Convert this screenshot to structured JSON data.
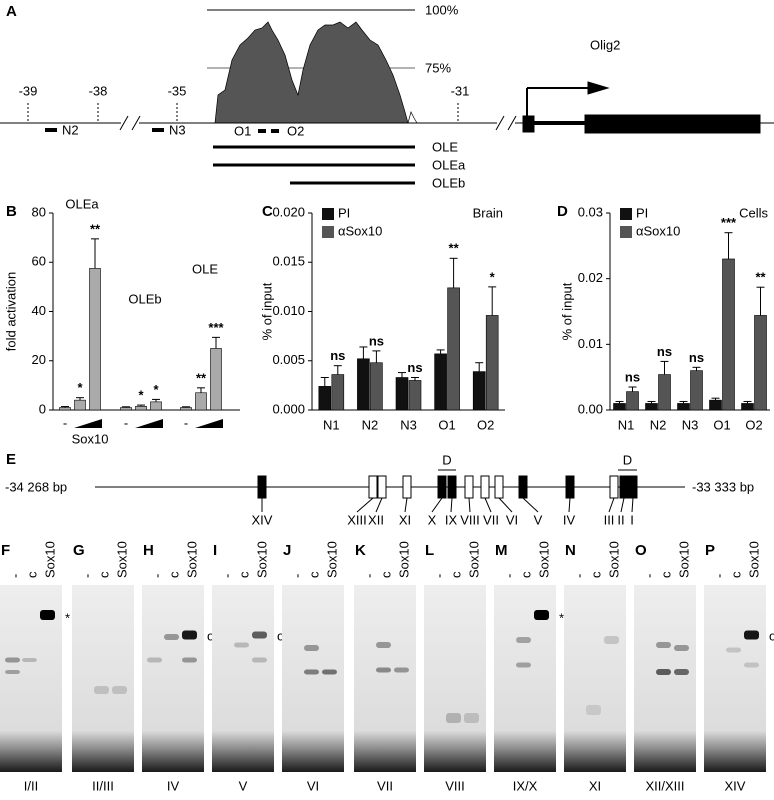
{
  "panel_a": {
    "label": "A",
    "scale_labels": [
      "100%",
      "75%"
    ],
    "coordinates": [
      "-39",
      "-38",
      "-35",
      "-31"
    ],
    "regions": [
      "N2",
      "N3",
      "O1",
      "O2"
    ],
    "constructs": [
      "OLE",
      "OLEa",
      "OLEb"
    ],
    "gene": "Olig2"
  },
  "chart_data": [
    {
      "type": "bar",
      "label": "B",
      "ylabel": "fold activation",
      "xlabel": "Sox10",
      "control_label": "-",
      "color": "#aaaaaa",
      "groups": [
        {
          "name": "OLEa",
          "values": [
            1,
            4,
            57.5
          ],
          "errors": [
            0.4,
            1,
            12
          ],
          "significance": [
            null,
            "*",
            "**"
          ]
        },
        {
          "name": "OLEb",
          "values": [
            1,
            1.5,
            3.3
          ],
          "errors": [
            0.3,
            0.5,
            1
          ],
          "significance": [
            null,
            "*",
            "*"
          ]
        },
        {
          "name": "OLE",
          "values": [
            1,
            7,
            25
          ],
          "errors": [
            0.3,
            2,
            4.5
          ],
          "significance": [
            null,
            "**",
            "***"
          ]
        }
      ],
      "ylim": [
        0,
        80
      ],
      "yticks": [
        0,
        20,
        40,
        60,
        80
      ]
    },
    {
      "type": "grouped_bar",
      "label": "C",
      "ylabel": "% of input",
      "annotation": "Brain",
      "categories": [
        "N1",
        "N2",
        "N3",
        "O1",
        "O2"
      ],
      "series": [
        {
          "name": "PI",
          "color": "#111111",
          "values": [
            0.0024,
            0.0052,
            0.0033,
            0.0057,
            0.0039
          ],
          "errors": [
            0.0009,
            0.0012,
            0.0005,
            0.0004,
            0.0009
          ]
        },
        {
          "name": "αSox10",
          "color": "#555555",
          "values": [
            0.0036,
            0.0048,
            0.003,
            0.0124,
            0.0096
          ],
          "errors": [
            0.0009,
            0.0012,
            0.0003,
            0.003,
            0.0029
          ],
          "significance": [
            "ns",
            "ns",
            "ns",
            "**",
            "*"
          ]
        }
      ],
      "ylim": [
        0,
        0.02
      ],
      "yticks": [
        {
          "value": 0,
          "label": "0.000"
        },
        {
          "value": 0.005,
          "label": "0.005"
        },
        {
          "value": 0.01,
          "label": "0.010"
        },
        {
          "value": 0.015,
          "label": "0.015"
        },
        {
          "value": 0.02,
          "label": "0.020"
        }
      ]
    },
    {
      "type": "grouped_bar",
      "label": "D",
      "ylabel": "% of input",
      "annotation": "Cells",
      "categories": [
        "N1",
        "N2",
        "N3",
        "O1",
        "O2"
      ],
      "series": [
        {
          "name": "PI",
          "color": "#111111",
          "values": [
            0.001,
            0.001,
            0.001,
            0.0015,
            0.001
          ],
          "errors": [
            0.0003,
            0.0003,
            0.0003,
            0.0003,
            0.0003
          ]
        },
        {
          "name": "αSox10",
          "color": "#555555",
          "values": [
            0.0028,
            0.0054,
            0.006,
            0.023,
            0.0144
          ],
          "errors": [
            0.0007,
            0.002,
            0.0005,
            0.004,
            0.0043
          ],
          "significance": [
            "ns",
            "ns",
            "ns",
            "***",
            "**"
          ]
        }
      ],
      "ylim": [
        0,
        0.03
      ],
      "yticks": [
        {
          "value": 0,
          "label": "0.00"
        },
        {
          "value": 0.01,
          "label": "0.01"
        },
        {
          "value": 0.02,
          "label": "0.02"
        },
        {
          "value": 0.03,
          "label": "0.03"
        }
      ]
    }
  ],
  "panel_e": {
    "label": "E",
    "start": "-34 268 bp",
    "end": "-33 333 bp",
    "d_label": "D",
    "sites": [
      {
        "name": "XIV",
        "filled": true
      },
      {
        "name": "XIII",
        "filled": false
      },
      {
        "name": "XII",
        "filled": false
      },
      {
        "name": "XI",
        "filled": false
      },
      {
        "name": "X",
        "filled": true
      },
      {
        "name": "IX",
        "filled": true
      },
      {
        "name": "VIII",
        "filled": false
      },
      {
        "name": "VII",
        "filled": false
      },
      {
        "name": "VI",
        "filled": false
      },
      {
        "name": "V",
        "filled": true
      },
      {
        "name": "IV",
        "filled": true
      },
      {
        "name": "III",
        "filled": false
      },
      {
        "name": "II",
        "filled": true
      },
      {
        "name": "I",
        "filled": true
      }
    ]
  },
  "gels": {
    "lanes": [
      "-",
      "c",
      "Sox10"
    ],
    "panels": [
      {
        "label": "F",
        "probe": "I/II",
        "marker": "*"
      },
      {
        "label": "G",
        "probe": "II/III"
      },
      {
        "label": "H",
        "probe": "IV",
        "marker": "o"
      },
      {
        "label": "I",
        "probe": "V",
        "marker": "o"
      },
      {
        "label": "J",
        "probe": "VI"
      },
      {
        "label": "K",
        "probe": "VII"
      },
      {
        "label": "L",
        "probe": "VIII"
      },
      {
        "label": "M",
        "probe": "IX/X",
        "marker": "*"
      },
      {
        "label": "N",
        "probe": "XI"
      },
      {
        "label": "O",
        "probe": "XII/XIII"
      },
      {
        "label": "P",
        "probe": "XIV",
        "marker": "o"
      }
    ]
  }
}
